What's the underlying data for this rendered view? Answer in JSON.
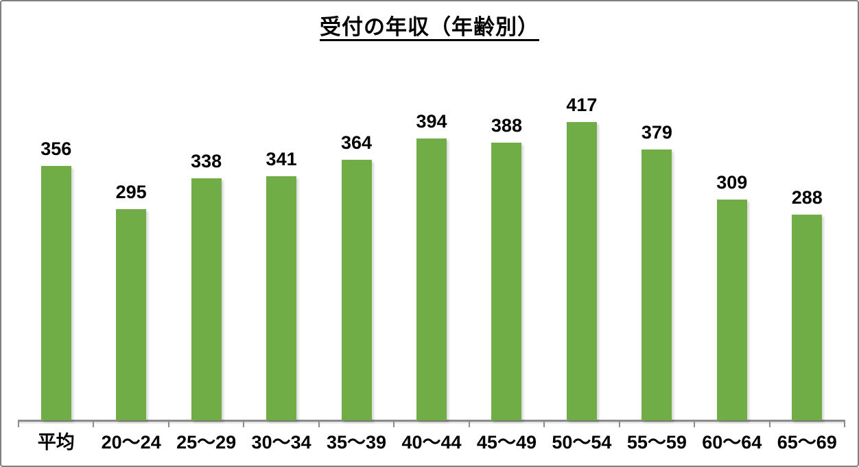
{
  "chart_data": {
    "type": "bar",
    "title": "受付の年収（年齢別）",
    "categories": [
      "平均",
      "20～24",
      "25～29",
      "30～34",
      "35～39",
      "40～44",
      "45～49",
      "50～54",
      "55～59",
      "60～64",
      "65～69"
    ],
    "values": [
      356,
      295,
      338,
      341,
      364,
      394,
      388,
      417,
      379,
      309,
      288
    ],
    "show_data_labels": true,
    "xlabel": "",
    "ylabel": "",
    "ylim_estimate": [
      0,
      500
    ],
    "grid": false,
    "legend_position": "none",
    "colors": {
      "bar": "#70AD47",
      "axis": "#8C8C8C",
      "text": "#000000",
      "background": "#FFFFFF",
      "border": "#7F7F7F"
    }
  }
}
